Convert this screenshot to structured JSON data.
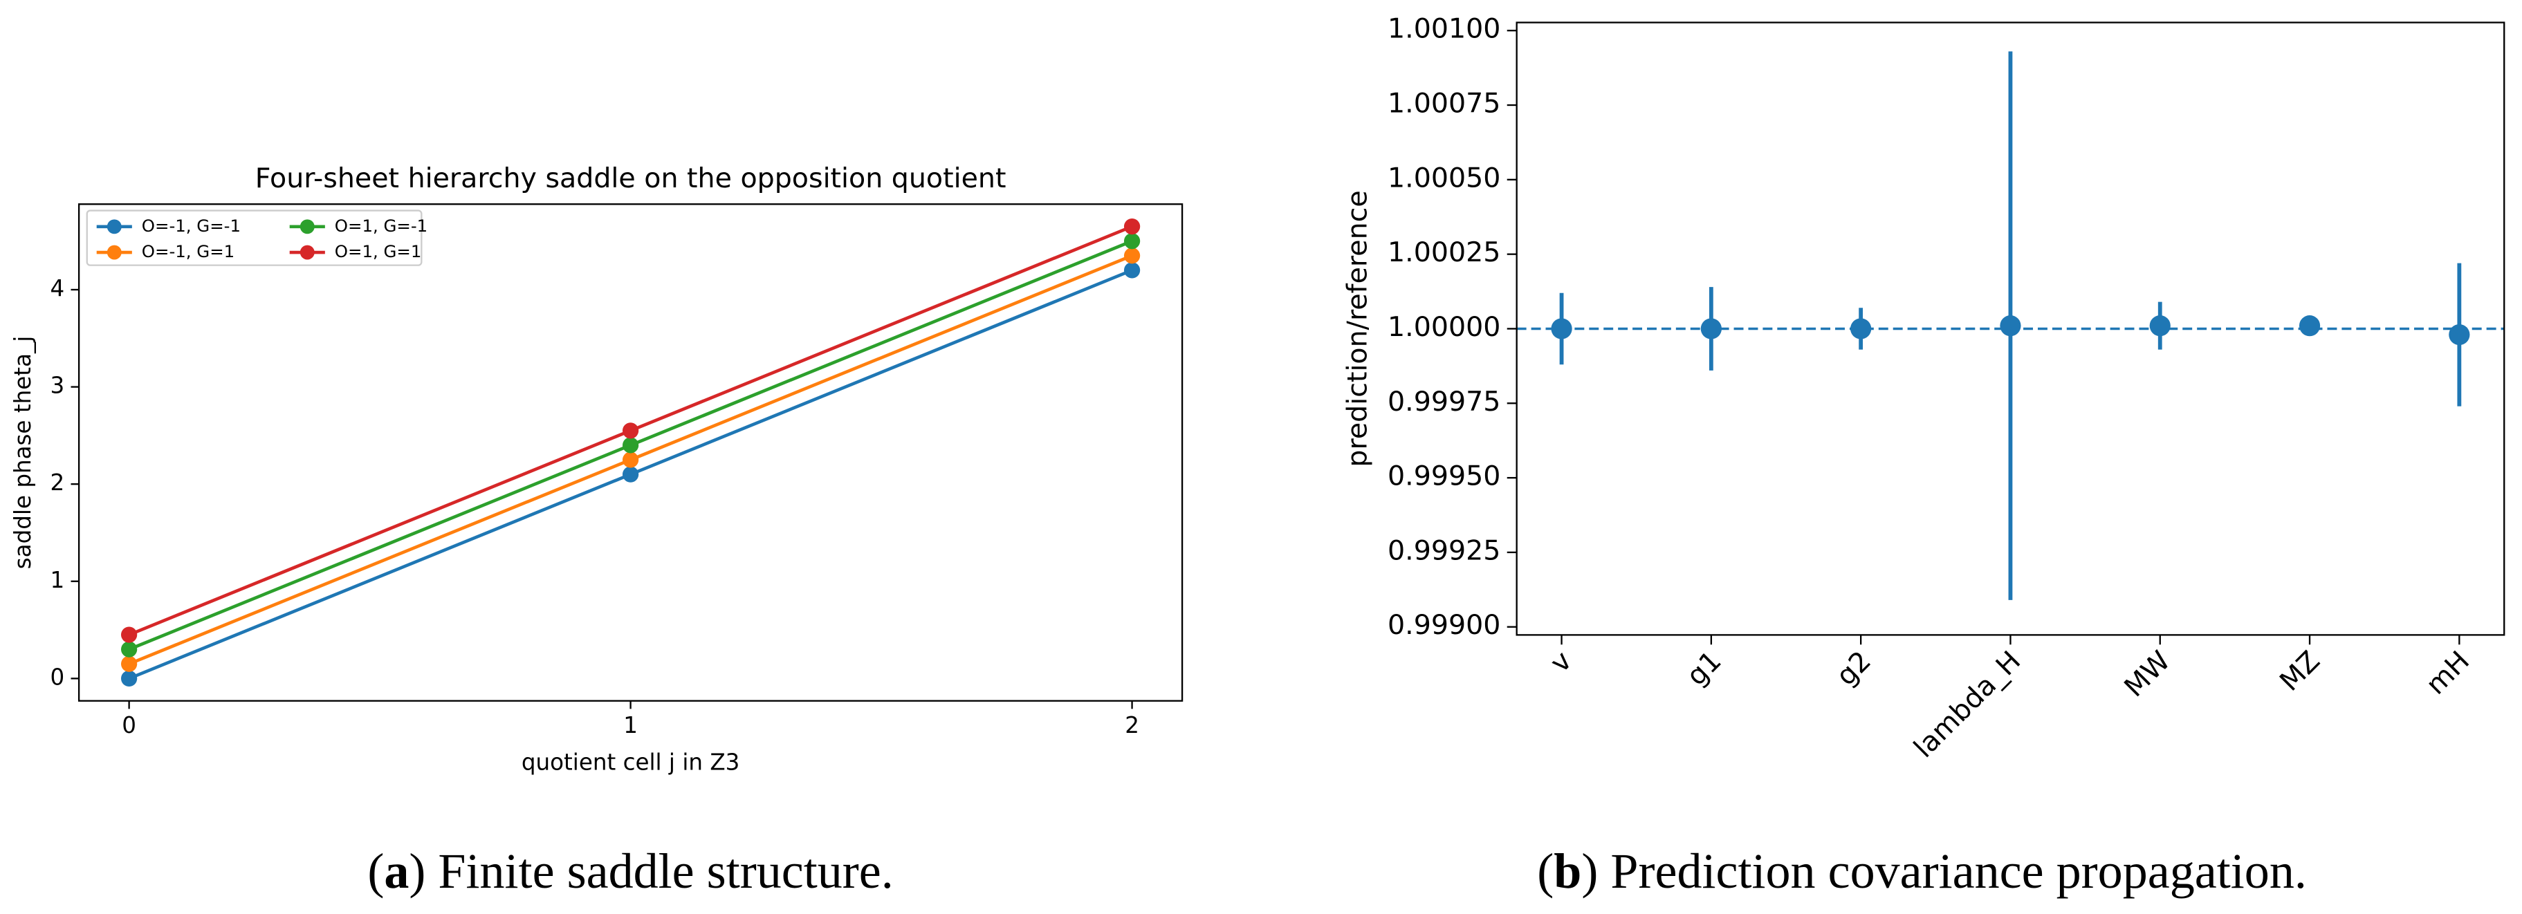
{
  "chart_data": [
    {
      "type": "line",
      "title": "Four-sheet hierarchy saddle on the opposition quotient",
      "x_label": "quotient cell j in Z3",
      "y_label": "saddle phase theta_j",
      "x": [
        0,
        1,
        2
      ],
      "series": [
        {
          "name": "O=-1, G=-1",
          "color": "#1f77b4",
          "values": [
            0,
            2.1,
            4.2
          ]
        },
        {
          "name": "O=-1, G=1",
          "color": "#ff7f0e",
          "values": [
            0.15,
            2.25,
            4.35
          ]
        },
        {
          "name": "O=1, G=-1",
          "color": "#2ca02c",
          "values": [
            0.3,
            2.4,
            4.5
          ]
        },
        {
          "name": "O=1, G=1",
          "color": "#d62728",
          "values": [
            0.45,
            2.55,
            4.65
          ]
        }
      ],
      "xlim": [
        -0.1,
        2.1
      ],
      "xticks": [
        0,
        1,
        2
      ],
      "ylim": [
        -0.23,
        4.88
      ],
      "yticks": [
        0,
        1,
        2,
        3,
        4
      ],
      "legend": "upper left",
      "legend_columns": 2,
      "caption": [
        "(",
        "a",
        ") Finite saddle structure."
      ]
    },
    {
      "type": "errorbar",
      "y_label": "prediction/reference",
      "categories": [
        "v",
        "g1",
        "g2",
        "lambda_H",
        "MW",
        "MZ",
        "mH"
      ],
      "values": [
        1.0,
        1.0,
        1.0,
        1.00001,
        1.00001,
        1.00001,
        0.99998
      ],
      "errors": [
        0.00012,
        0.00014,
        7e-05,
        0.00092,
        8e-05,
        1e-05,
        0.00024
      ],
      "color": "#1f77b4",
      "reference_line": 1.0,
      "ylim": [
        0.998973,
        1.001027
      ],
      "yticks": [
        {
          "value": 0.999,
          "label": "0.99900"
        },
        {
          "value": 0.99925,
          "label": "0.99925"
        },
        {
          "value": 0.9995,
          "label": "0.99950"
        },
        {
          "value": 0.99975,
          "label": "0.99975"
        },
        {
          "value": 1.0,
          "label": "1.00000"
        },
        {
          "value": 1.00025,
          "label": "1.00025"
        },
        {
          "value": 1.0005,
          "label": "1.00050"
        },
        {
          "value": 1.00075,
          "label": "1.00075"
        },
        {
          "value": 1.001,
          "label": "1.00100"
        }
      ],
      "caption": [
        "(",
        "b",
        ") Prediction covariance propagation."
      ]
    }
  ]
}
